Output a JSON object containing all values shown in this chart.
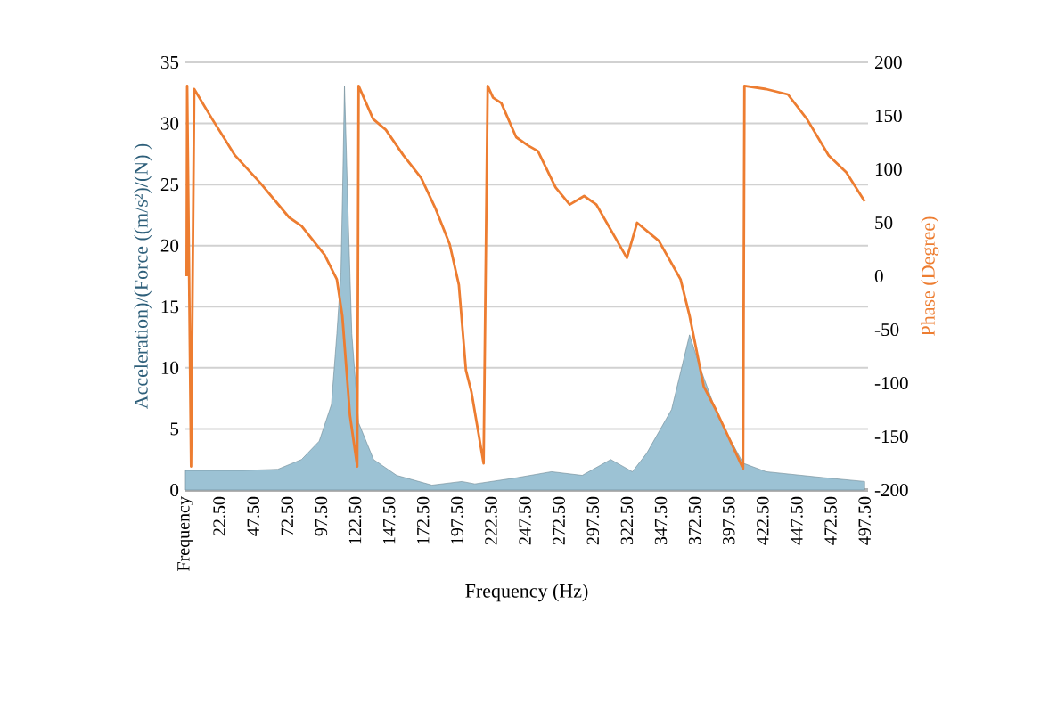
{
  "chart_data": {
    "type": "area",
    "xlabel": "Frequency (Hz)",
    "ylabel": "Acceleration)/(Force ((m/s²)/(N) )",
    "y2label": "Phase (Degree)",
    "grid": "y",
    "xlim": [
      -2.5,
      500
    ],
    "xticks": [
      {
        "value": -2.5,
        "label": "Frequency"
      },
      {
        "value": 22.5,
        "label": "22.50"
      },
      {
        "value": 47.5,
        "label": "47.50"
      },
      {
        "value": 72.5,
        "label": "72.50"
      },
      {
        "value": 97.5,
        "label": "97.50"
      },
      {
        "value": 122.5,
        "label": "122.50"
      },
      {
        "value": 147.5,
        "label": "147.50"
      },
      {
        "value": 172.5,
        "label": "172.50"
      },
      {
        "value": 197.5,
        "label": "197.50"
      },
      {
        "value": 222.5,
        "label": "222.50"
      },
      {
        "value": 247.5,
        "label": "247.50"
      },
      {
        "value": 272.5,
        "label": "272.50"
      },
      {
        "value": 297.5,
        "label": "297.50"
      },
      {
        "value": 322.5,
        "label": "322.50"
      },
      {
        "value": 347.5,
        "label": "347.50"
      },
      {
        "value": 372.5,
        "label": "372.50"
      },
      {
        "value": 397.5,
        "label": "397.50"
      },
      {
        "value": 422.5,
        "label": "422.50"
      },
      {
        "value": 447.5,
        "label": "447.50"
      },
      {
        "value": 472.5,
        "label": "472.50"
      },
      {
        "value": 497.5,
        "label": "497.50"
      }
    ],
    "ylim": [
      0,
      35
    ],
    "yticks": [
      0,
      5,
      10,
      15,
      20,
      25,
      30,
      35
    ],
    "y2lim": [
      -200,
      200
    ],
    "y2ticks": [
      -200,
      -150,
      -100,
      -50,
      0,
      50,
      100,
      150,
      200
    ],
    "series": [
      {
        "color": "#9cc2d4",
        "x": [
          -2.5,
          20,
          40,
          65.5,
          83,
          96,
          105,
          109,
          112,
          113.3,
          114.6,
          117,
          120,
          125,
          136,
          153,
          179,
          201,
          210.6,
          241,
          267,
          289.6,
          310.6,
          326.5,
          337,
          355.4,
          368.6,
          376.4,
          389.6,
          408,
          425,
          468.6,
          497.5
        ],
        "values": [
          1.6,
          1.6,
          1.6,
          1.7,
          2.5,
          4,
          7,
          12.8,
          17.8,
          25,
          33.1,
          23.6,
          12.8,
          5.5,
          2.5,
          1.2,
          0.4,
          0.7,
          0.5,
          1.0,
          1.5,
          1.2,
          2.5,
          1.5,
          3,
          6.6,
          12.7,
          10,
          6,
          2.2,
          1.5,
          1.0,
          0.7
        ]
      },
      {
        "type": "line",
        "axis": "y2",
        "color": "#ed7d31",
        "x": [
          -1.6,
          -1.2,
          1.7,
          4,
          17.2,
          34,
          52.8,
          73.8,
          83,
          100,
          109,
          113,
          118.6,
          124,
          125,
          135.7,
          145,
          158,
          171,
          181.7,
          192,
          198.8,
          204,
          208,
          217,
          220,
          224,
          230,
          241,
          250,
          257,
          270,
          280.4,
          291,
          300,
          322.5,
          330,
          346,
          362,
          368.6,
          379,
          388,
          408,
          409,
          425,
          441,
          455,
          471,
          484,
          497.5
        ],
        "values": [
          0,
          178,
          -178,
          175,
          147,
          113,
          87,
          55,
          47,
          20,
          -3,
          -37,
          -130,
          -178,
          178,
          147,
          137,
          113,
          92,
          63,
          30,
          -8,
          -88,
          -108,
          -175,
          178,
          167,
          162,
          130,
          122,
          117,
          83,
          67,
          75,
          67,
          17,
          50,
          33,
          -3,
          -37,
          -103,
          -125,
          -180,
          178,
          175,
          170,
          147,
          113,
          97,
          70
        ]
      }
    ]
  }
}
